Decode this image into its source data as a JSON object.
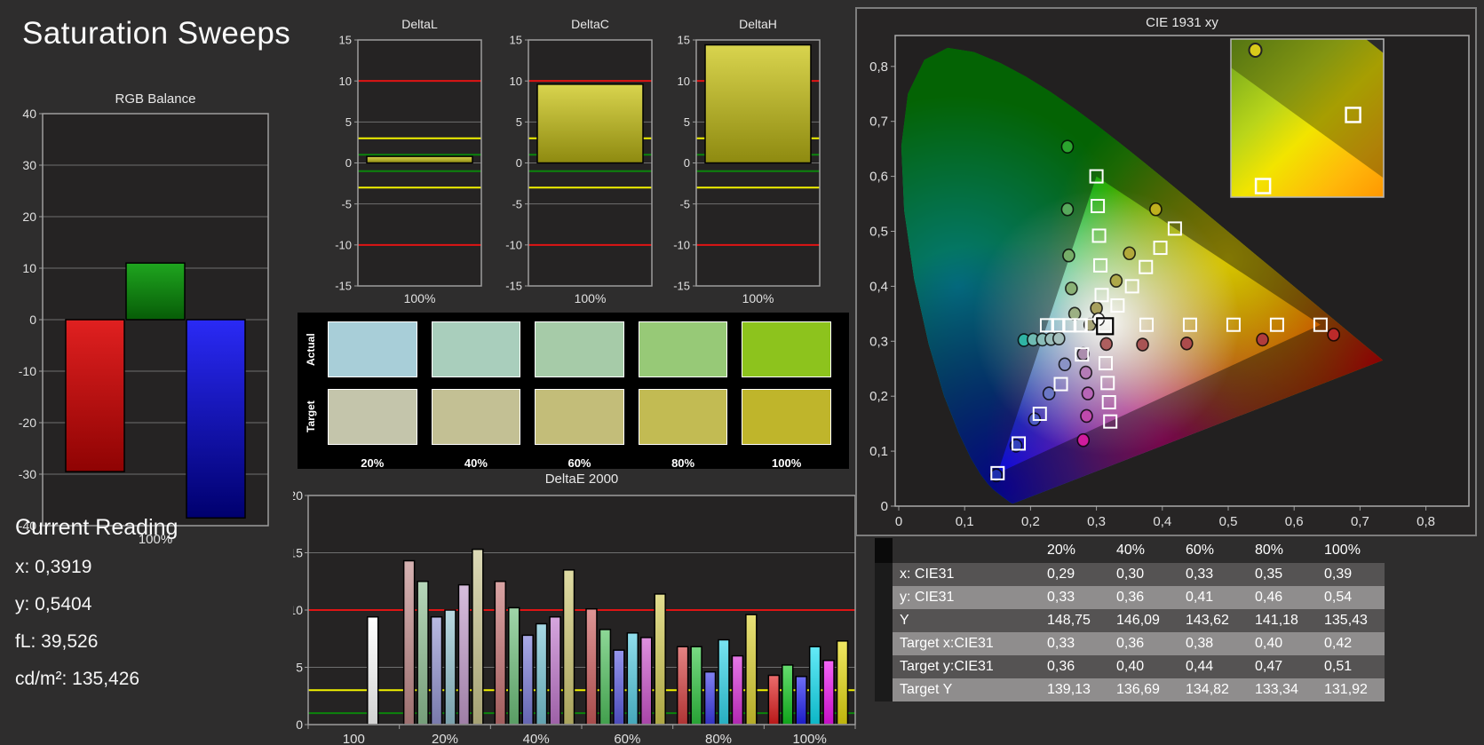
{
  "title": "Saturation Sweeps",
  "current_reading": {
    "title": "Current Reading",
    "lines": [
      "x: 0,3919",
      "y: 0,5404",
      "fL: 39,526",
      "cd/m²: 135,426"
    ]
  },
  "swatches": {
    "row_labels": [
      "Actual",
      "Target"
    ],
    "col_labels": [
      "20%",
      "40%",
      "60%",
      "80%",
      "100%"
    ],
    "actual_colors": [
      "#a8ced8",
      "#a9cebc",
      "#a6cba8",
      "#97c977",
      "#8dc31d"
    ],
    "target_colors": [
      "#c4c5ab",
      "#c3c094",
      "#c3bd79",
      "#c2bb53",
      "#bfb52b"
    ]
  },
  "table": {
    "columns": [
      "20%",
      "40%",
      "60%",
      "80%",
      "100%"
    ],
    "rows": [
      {
        "label": "x: CIE31",
        "values": [
          "0,29",
          "0,30",
          "0,33",
          "0,35",
          "0,39"
        ]
      },
      {
        "label": "y: CIE31",
        "values": [
          "0,33",
          "0,36",
          "0,41",
          "0,46",
          "0,54"
        ]
      },
      {
        "label": "Y",
        "values": [
          "148,75",
          "146,09",
          "143,62",
          "141,18",
          "135,43"
        ]
      },
      {
        "label": "Target x:CIE31",
        "values": [
          "0,33",
          "0,36",
          "0,38",
          "0,40",
          "0,42"
        ]
      },
      {
        "label": "Target y:CIE31",
        "values": [
          "0,36",
          "0,40",
          "0,44",
          "0,47",
          "0,51"
        ]
      },
      {
        "label": "Target Y",
        "values": [
          "139,13",
          "136,69",
          "134,82",
          "133,34",
          "131,92"
        ]
      }
    ]
  },
  "chart_data": [
    {
      "id": "rgb_balance",
      "type": "bar",
      "title": "RGB Balance",
      "xlabel": "100%",
      "ylim": [
        -40,
        40
      ],
      "ytick_step": 10,
      "series": [
        {
          "name": "red",
          "color": "#e02020",
          "color2": "#8f0303",
          "value": -29.5
        },
        {
          "name": "green",
          "color": "#1fa51f",
          "color2": "#075c07",
          "value": 11
        },
        {
          "name": "blue",
          "color": "#2a2af5",
          "color2": "#00006e",
          "value": -38.5
        }
      ]
    },
    {
      "id": "delta_l",
      "type": "bar",
      "title": "DeltaL",
      "xlabel": "100%",
      "ylim": [
        -15,
        15
      ],
      "ytick_step": 5,
      "ref_lines": [
        {
          "value": 10,
          "color": "#e01414"
        },
        {
          "value": -10,
          "color": "#e01414"
        },
        {
          "value": 3,
          "color": "#f2f200"
        },
        {
          "value": -3,
          "color": "#f2f200"
        },
        {
          "value": 1,
          "color": "#0c840c"
        },
        {
          "value": -1,
          "color": "#0c840c"
        }
      ],
      "bar": {
        "value": 0.8,
        "color": "#d9d44e",
        "color2": "#8e8a10"
      }
    },
    {
      "id": "delta_c",
      "type": "bar",
      "title": "DeltaC",
      "xlabel": "100%",
      "ylim": [
        -15,
        15
      ],
      "ytick_step": 5,
      "ref_lines": [
        {
          "value": 10,
          "color": "#e01414"
        },
        {
          "value": -10,
          "color": "#e01414"
        },
        {
          "value": 3,
          "color": "#f2f200"
        },
        {
          "value": -3,
          "color": "#f2f200"
        },
        {
          "value": 1,
          "color": "#0c840c"
        },
        {
          "value": -1,
          "color": "#0c840c"
        }
      ],
      "bar": {
        "value": 9.6,
        "color": "#d9d44e",
        "color2": "#8e8a10"
      }
    },
    {
      "id": "delta_h",
      "type": "bar",
      "title": "DeltaH",
      "xlabel": "100%",
      "ylim": [
        -15,
        15
      ],
      "ytick_step": 5,
      "ref_lines": [
        {
          "value": 10,
          "color": "#e01414"
        },
        {
          "value": -10,
          "color": "#e01414"
        },
        {
          "value": 3,
          "color": "#f2f200"
        },
        {
          "value": -3,
          "color": "#f2f200"
        },
        {
          "value": 1,
          "color": "#0c840c"
        },
        {
          "value": -1,
          "color": "#0c840c"
        }
      ],
      "bar": {
        "value": 14.4,
        "color": "#d9d44e",
        "color2": "#8e8a10"
      }
    },
    {
      "id": "delta_e",
      "type": "grouped_bar",
      "title": "DeltaE 2000",
      "ylim": [
        0,
        20
      ],
      "ytick_step": 5,
      "ref_lines": [
        {
          "value": 10,
          "color": "#e01414"
        },
        {
          "value": 3,
          "color": "#f2f200"
        },
        {
          "value": 1,
          "color": "#0c840c"
        }
      ],
      "groups": [
        {
          "label": "100",
          "bars": [
            {
              "color": "#ffffff",
              "value": 9.4,
              "slot": 4
            }
          ]
        },
        {
          "label": "20%",
          "bars": [
            {
              "color": "#c08989",
              "value": 14.3
            },
            {
              "color": "#8fc094",
              "value": 12.5
            },
            {
              "color": "#9495d2",
              "value": 9.4
            },
            {
              "color": "#93c3d0",
              "value": 10.0
            },
            {
              "color": "#c29bcb",
              "value": 12.2
            },
            {
              "color": "#c9c48e",
              "value": 15.3
            }
          ]
        },
        {
          "label": "40%",
          "bars": [
            {
              "color": "#c47272",
              "value": 12.5
            },
            {
              "color": "#6dbf7a",
              "value": 10.2
            },
            {
              "color": "#7a7bd8",
              "value": 7.8
            },
            {
              "color": "#78c5d6",
              "value": 8.8
            },
            {
              "color": "#c076cc",
              "value": 9.4
            },
            {
              "color": "#cec771",
              "value": 13.5
            }
          ]
        },
        {
          "label": "60%",
          "bars": [
            {
              "color": "#cc5c5c",
              "value": 10.1
            },
            {
              "color": "#50c25e",
              "value": 8.3
            },
            {
              "color": "#5c5ce2",
              "value": 6.5
            },
            {
              "color": "#54cce2",
              "value": 8.0
            },
            {
              "color": "#cc54cc",
              "value": 7.6
            },
            {
              "color": "#d3cb52",
              "value": 11.4
            }
          ]
        },
        {
          "label": "80%",
          "bars": [
            {
              "color": "#d54040",
              "value": 6.8
            },
            {
              "color": "#30c540",
              "value": 6.8
            },
            {
              "color": "#3c3cea",
              "value": 4.6
            },
            {
              "color": "#30d4ea",
              "value": 7.4
            },
            {
              "color": "#d830d8",
              "value": 6.0
            },
            {
              "color": "#dbd130",
              "value": 9.6
            }
          ]
        },
        {
          "label": "100%",
          "bars": [
            {
              "color": "#e01d1d",
              "value": 4.3
            },
            {
              "color": "#12c720",
              "value": 5.2
            },
            {
              "color": "#2121f2",
              "value": 4.2
            },
            {
              "color": "#10def2",
              "value": 6.8
            },
            {
              "color": "#ef12ef",
              "value": 5.6
            },
            {
              "color": "#e6da0e",
              "value": 7.3
            }
          ]
        }
      ]
    },
    {
      "id": "cie",
      "type": "scatter",
      "title": "CIE 1931 xy",
      "xlim": [
        0,
        0.8
      ],
      "ylim": [
        0,
        0.8
      ],
      "xtick_labels": [
        "0",
        "0,1",
        "0,2",
        "0,3",
        "0,4",
        "0,5",
        "0,6",
        "0,7",
        "0,8"
      ],
      "ytick_labels": [
        "0",
        "0,1",
        "0,2",
        "0,3",
        "0,4",
        "0,5",
        "0,6",
        "0,7",
        "0,8"
      ],
      "white_point": [
        0.31,
        0.33
      ],
      "gamut_triangle": {
        "red": [
          0.64,
          0.33
        ],
        "green": [
          0.3,
          0.6
        ],
        "blue": [
          0.15,
          0.06
        ]
      },
      "current_target": [
        0.313,
        0.329
      ],
      "targets": [
        [
          0.376,
          0.33
        ],
        [
          0.442,
          0.33
        ],
        [
          0.508,
          0.33
        ],
        [
          0.574,
          0.33
        ],
        [
          0.64,
          0.33
        ],
        [
          0.308,
          0.384
        ],
        [
          0.306,
          0.438
        ],
        [
          0.304,
          0.492
        ],
        [
          0.302,
          0.546
        ],
        [
          0.3,
          0.6
        ],
        [
          0.278,
          0.276
        ],
        [
          0.246,
          0.222
        ],
        [
          0.214,
          0.168
        ],
        [
          0.182,
          0.114
        ],
        [
          0.15,
          0.06
        ],
        [
          0.293,
          0.329
        ],
        [
          0.276,
          0.329
        ],
        [
          0.259,
          0.329
        ],
        [
          0.242,
          0.329
        ],
        [
          0.225,
          0.329
        ],
        [
          0.314,
          0.26
        ],
        [
          0.317,
          0.224
        ],
        [
          0.319,
          0.189
        ],
        [
          0.321,
          0.154
        ],
        [
          0.332,
          0.365
        ],
        [
          0.354,
          0.4
        ],
        [
          0.375,
          0.435
        ],
        [
          0.397,
          0.47
        ],
        [
          0.419,
          0.505
        ]
      ],
      "measurements": [
        {
          "x": 0.315,
          "y": 0.295,
          "color": "#ad5f5f"
        },
        {
          "x": 0.37,
          "y": 0.294,
          "color": "#a85454"
        },
        {
          "x": 0.437,
          "y": 0.296,
          "color": "#ac4c4c"
        },
        {
          "x": 0.552,
          "y": 0.303,
          "color": "#b03c3c"
        },
        {
          "x": 0.66,
          "y": 0.312,
          "color": "#bc2a2a"
        },
        {
          "x": 0.267,
          "y": 0.35,
          "color": "#9cb083"
        },
        {
          "x": 0.262,
          "y": 0.396,
          "color": "#8ab176"
        },
        {
          "x": 0.258,
          "y": 0.456,
          "color": "#76ad68"
        },
        {
          "x": 0.256,
          "y": 0.54,
          "color": "#57a95c"
        },
        {
          "x": 0.256,
          "y": 0.654,
          "color": "#2ba42e"
        },
        {
          "x": 0.252,
          "y": 0.258,
          "color": "#8a93c6"
        },
        {
          "x": 0.228,
          "y": 0.205,
          "color": "#6b77c6"
        },
        {
          "x": 0.206,
          "y": 0.158,
          "color": "#4f5cc4"
        },
        {
          "x": 0.178,
          "y": 0.11,
          "color": "#3343bc"
        },
        {
          "x": 0.148,
          "y": 0.056,
          "color": "#1d2fae"
        },
        {
          "x": 0.19,
          "y": 0.302,
          "color": "#2fb3a4"
        },
        {
          "x": 0.204,
          "y": 0.303,
          "color": "#6fbab2"
        },
        {
          "x": 0.218,
          "y": 0.303,
          "color": "#8abcb8"
        },
        {
          "x": 0.231,
          "y": 0.304,
          "color": "#9bbebb"
        },
        {
          "x": 0.243,
          "y": 0.305,
          "color": "#a5bfbc"
        },
        {
          "x": 0.28,
          "y": 0.277,
          "color": "#ab8dad"
        },
        {
          "x": 0.284,
          "y": 0.243,
          "color": "#b47bb6"
        },
        {
          "x": 0.287,
          "y": 0.205,
          "color": "#b765b7"
        },
        {
          "x": 0.285,
          "y": 0.164,
          "color": "#bf49ad"
        },
        {
          "x": 0.28,
          "y": 0.12,
          "color": "#d01b9e"
        },
        {
          "x": 0.29,
          "y": 0.33,
          "color": "#a7a578"
        },
        {
          "x": 0.3,
          "y": 0.36,
          "color": "#a7a05e"
        },
        {
          "x": 0.33,
          "y": 0.41,
          "color": "#aea94a"
        },
        {
          "x": 0.35,
          "y": 0.46,
          "color": "#b2a93a"
        },
        {
          "x": 0.39,
          "y": 0.54,
          "color": "#bfb01e"
        },
        {
          "x": 0.303,
          "y": 0.34,
          "color": "#ffffff"
        }
      ],
      "inset_points": [
        {
          "type": "circle",
          "x": 0.16,
          "y": 0.07,
          "color": "#d8ca1a"
        },
        {
          "type": "square",
          "x": 0.8,
          "y": 0.48
        },
        {
          "type": "square",
          "x": 0.21,
          "y": 0.93
        }
      ]
    }
  ]
}
